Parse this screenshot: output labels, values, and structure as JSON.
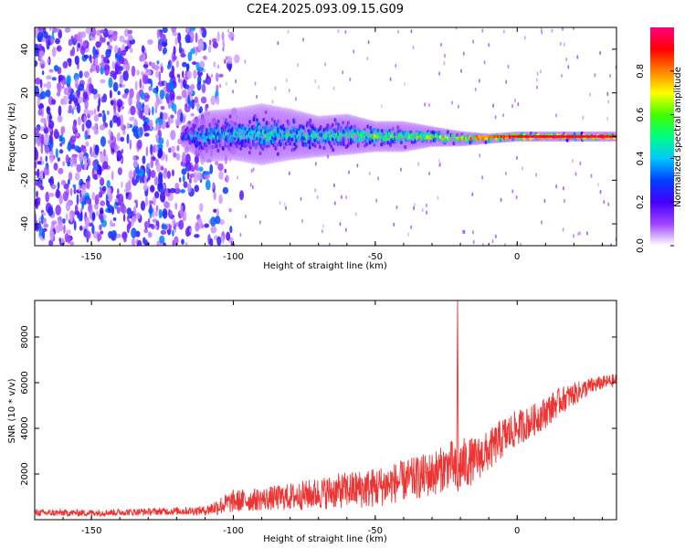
{
  "figure_title": "C2E4.2025.093.09.15.G09",
  "chart_data": [
    {
      "type": "heatmap",
      "xlabel": "Height of straight line (km)",
      "ylabel": "Frequency (Hz)",
      "xlim": [
        -170,
        35
      ],
      "ylim": [
        -50,
        50
      ],
      "x_ticks": [
        -150,
        -100,
        -50,
        0
      ],
      "y_ticks": [
        -40,
        -20,
        0,
        20,
        40
      ],
      "colorbar": {
        "label": "Normalized spectral amplitude",
        "range": [
          0,
          1
        ],
        "ticks": [
          "0.0",
          "0.2",
          "0.4",
          "0.6",
          "0.8"
        ],
        "colormap": [
          "#ffffff",
          "#a044ff",
          "#4400ff",
          "#0040ff",
          "#00c8ff",
          "#00ff80",
          "#40ff00",
          "#ffff00",
          "#ff8000",
          "#ff0000",
          "#ff0080"
        ]
      },
      "description_ridge": {
        "x": [
          -118,
          -110,
          -100,
          -90,
          -80,
          -70,
          -60,
          -50,
          -40,
          -30,
          -20,
          -10,
          0,
          10,
          20,
          35
        ],
        "center_freq": [
          0,
          0,
          1,
          1,
          1,
          0,
          1,
          0,
          0,
          0,
          -1,
          -1,
          0,
          0,
          0,
          0
        ],
        "half_width": [
          2,
          5,
          5,
          6,
          5,
          4,
          4,
          3,
          3,
          2,
          1.5,
          1,
          1,
          1,
          1,
          1
        ],
        "amplitude": [
          0.3,
          0.4,
          0.4,
          0.45,
          0.45,
          0.45,
          0.5,
          0.55,
          0.55,
          0.6,
          0.75,
          0.8,
          0.9,
          0.9,
          0.9,
          0.9
        ]
      },
      "noise_region": {
        "x": [
          -170,
          -105
        ]
      }
    },
    {
      "type": "line",
      "xlabel": "Height of straight line (km)",
      "ylabel": "SNR (10 * v/v)",
      "xlim": [
        -170,
        35
      ],
      "ylim": [
        0,
        9600
      ],
      "x_ticks": [
        -150,
        -100,
        -50,
        0
      ],
      "y_ticks": [
        2000,
        4000,
        6000,
        8000
      ],
      "series": [
        {
          "color": "#ee3333",
          "x": [
            -170,
            -150,
            -130,
            -110,
            -105,
            -100,
            -90,
            -80,
            -70,
            -60,
            -50,
            -40,
            -30,
            -25,
            -23,
            -21,
            -20,
            -15,
            -10,
            -5,
            0,
            5,
            10,
            15,
            20,
            25,
            30,
            35
          ],
          "mean": [
            300,
            300,
            350,
            400,
            600,
            800,
            900,
            1000,
            1150,
            1300,
            1400,
            1700,
            2000,
            2300,
            2500,
            1800,
            2400,
            2600,
            3000,
            3600,
            4000,
            4300,
            4700,
            5200,
            5500,
            5800,
            6000,
            6100
          ],
          "spread": [
            150,
            150,
            150,
            200,
            400,
            500,
            500,
            600,
            700,
            800,
            900,
            900,
            1000,
            1000,
            1000,
            1200,
            1200,
            1000,
            900,
            900,
            800,
            700,
            700,
            600,
            500,
            400,
            300,
            300
          ]
        }
      ],
      "annotations": {
        "spike": {
          "x": -21,
          "y": 9600
        }
      }
    }
  ]
}
